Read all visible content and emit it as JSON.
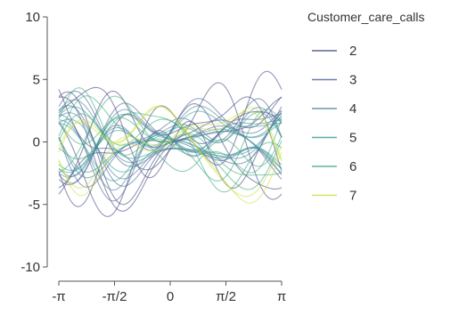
{
  "chart_data": {
    "type": "line",
    "plot_style": "andrews-curves",
    "title": "",
    "xlabel": "",
    "ylabel": "",
    "xlim": [
      -3.14159,
      3.14159
    ],
    "ylim": [
      -10,
      10
    ],
    "x_ticks": [
      {
        "value": -3.14159,
        "label": "-π"
      },
      {
        "value": -1.5708,
        "label": "-π/2"
      },
      {
        "value": 0,
        "label": "0"
      },
      {
        "value": 1.5708,
        "label": "π/2"
      },
      {
        "value": 3.14159,
        "label": "π"
      }
    ],
    "y_ticks": [
      {
        "value": -10,
        "label": "-10"
      },
      {
        "value": -5,
        "label": "-5"
      },
      {
        "value": 0,
        "label": "0"
      },
      {
        "value": 5,
        "label": "5"
      },
      {
        "value": 10,
        "label": "10"
      }
    ],
    "grid": false,
    "legend": {
      "title": "Customer_care_calls",
      "placement": "right",
      "entries": [
        {
          "label": "2",
          "color": "#3b3f7a"
        },
        {
          "label": "3",
          "color": "#4a5d93"
        },
        {
          "label": "4",
          "color": "#3f7d9a"
        },
        {
          "label": "5",
          "color": "#2e9a93"
        },
        {
          "label": "6",
          "color": "#35a878"
        },
        {
          "label": "7",
          "color": "#c8e03a"
        }
      ]
    },
    "series": [
      {
        "name": "2",
        "color": "#3b3f7a",
        "curves": [
          [
            0.3,
            2.2,
            -1.8,
            1.2,
            1.6,
            -0.9
          ],
          [
            0.65,
            1.7,
            1.5,
            -2.0,
            -1.3,
            1.1
          ],
          [
            -0.35,
            2.4,
            -1.9,
            0.8,
            1.9,
            -0.6
          ],
          [
            0.2,
            -1.3,
            2.2,
            1.5,
            -1.6,
            1.0
          ],
          [
            0.55,
            0.9,
            -2.4,
            -0.7,
            1.4,
            1.3
          ],
          [
            -0.15,
            2.6,
            0.5,
            -1.6,
            2.1,
            -0.8
          ],
          [
            0.45,
            -1.9,
            -1.4,
            2.3,
            0.6,
            1.2
          ],
          [
            -0.25,
            1.6,
            2.1,
            0.9,
            -1.9,
            -1.0
          ]
        ]
      },
      {
        "name": "3",
        "color": "#4a5d93",
        "curves": [
          [
            0.2,
            1.5,
            -1.3,
            0.9,
            1.1,
            -0.7
          ],
          [
            -0.45,
            -1.2,
            1.4,
            -1.1,
            -0.9,
            0.8
          ],
          [
            0.4,
            1.8,
            0.6,
            -1.5,
            0.7,
            1.0
          ],
          [
            -0.1,
            -0.8,
            -1.7,
            1.3,
            1.2,
            -0.5
          ],
          [
            0.3,
            1.1,
            1.9,
            0.5,
            -1.3,
            0.9
          ],
          [
            -0.3,
            1.9,
            -0.9,
            -0.8,
            1.5,
            -1.1
          ]
        ]
      },
      {
        "name": "4",
        "color": "#3f7d9a",
        "curves": [
          [
            0.1,
            1.2,
            -1.0,
            0.8,
            0.9,
            -0.6
          ],
          [
            -0.35,
            -1.0,
            1.2,
            -0.9,
            -0.7,
            0.7
          ],
          [
            0.25,
            1.4,
            0.4,
            -1.2,
            0.6,
            0.8
          ],
          [
            -0.05,
            -0.6,
            -1.5,
            1.0,
            1.0,
            -0.4
          ],
          [
            0.3,
            0.9,
            1.6,
            0.4,
            -1.1,
            0.7
          ],
          [
            -0.2,
            1.6,
            -0.7,
            -0.6,
            1.2,
            -0.9
          ]
        ]
      },
      {
        "name": "5",
        "color": "#2e9a93",
        "curves": [
          [
            0.05,
            1.0,
            -0.8,
            0.6,
            0.7,
            -0.5
          ],
          [
            -0.3,
            -0.9,
            1.0,
            -0.7,
            -0.6,
            0.6
          ],
          [
            0.2,
            1.2,
            0.3,
            -1.0,
            0.5,
            0.7
          ],
          [
            0.0,
            -0.5,
            -1.3,
            0.8,
            0.8,
            -0.3
          ],
          [
            0.25,
            0.8,
            1.4,
            0.3,
            -0.9,
            0.6
          ],
          [
            -0.15,
            1.3,
            -0.6,
            -0.5,
            1.0,
            -0.7
          ]
        ]
      },
      {
        "name": "6",
        "color": "#35a878",
        "curves": [
          [
            -0.4,
            -2.0,
            1.1,
            -0.9,
            0.9,
            0.8
          ],
          [
            0.1,
            -1.6,
            -1.2,
            1.0,
            -0.8,
            -0.9
          ],
          [
            -0.3,
            -1.8,
            0.8,
            1.2,
            1.1,
            -0.6
          ],
          [
            0.2,
            -1.3,
            -0.9,
            -1.1,
            0.6,
            1.0
          ],
          [
            -0.2,
            -2.1,
            1.3,
            0.6,
            -1.0,
            0.7
          ],
          [
            0.05,
            -1.4,
            -1.0,
            1.4,
            0.8,
            -1.1
          ]
        ]
      },
      {
        "name": "7",
        "color": "#c8e03a",
        "curves": [
          [
            -0.6,
            -2.4,
            1.6,
            1.0,
            1.2,
            -0.8
          ],
          [
            -0.3,
            2.0,
            0.7,
            -1.3,
            -0.5,
            1.0
          ],
          [
            -0.5,
            -2.2,
            1.4,
            0.8,
            1.4,
            -0.6
          ],
          [
            0.1,
            1.7,
            0.9,
            -1.1,
            -0.7,
            0.8
          ]
        ]
      }
    ]
  }
}
